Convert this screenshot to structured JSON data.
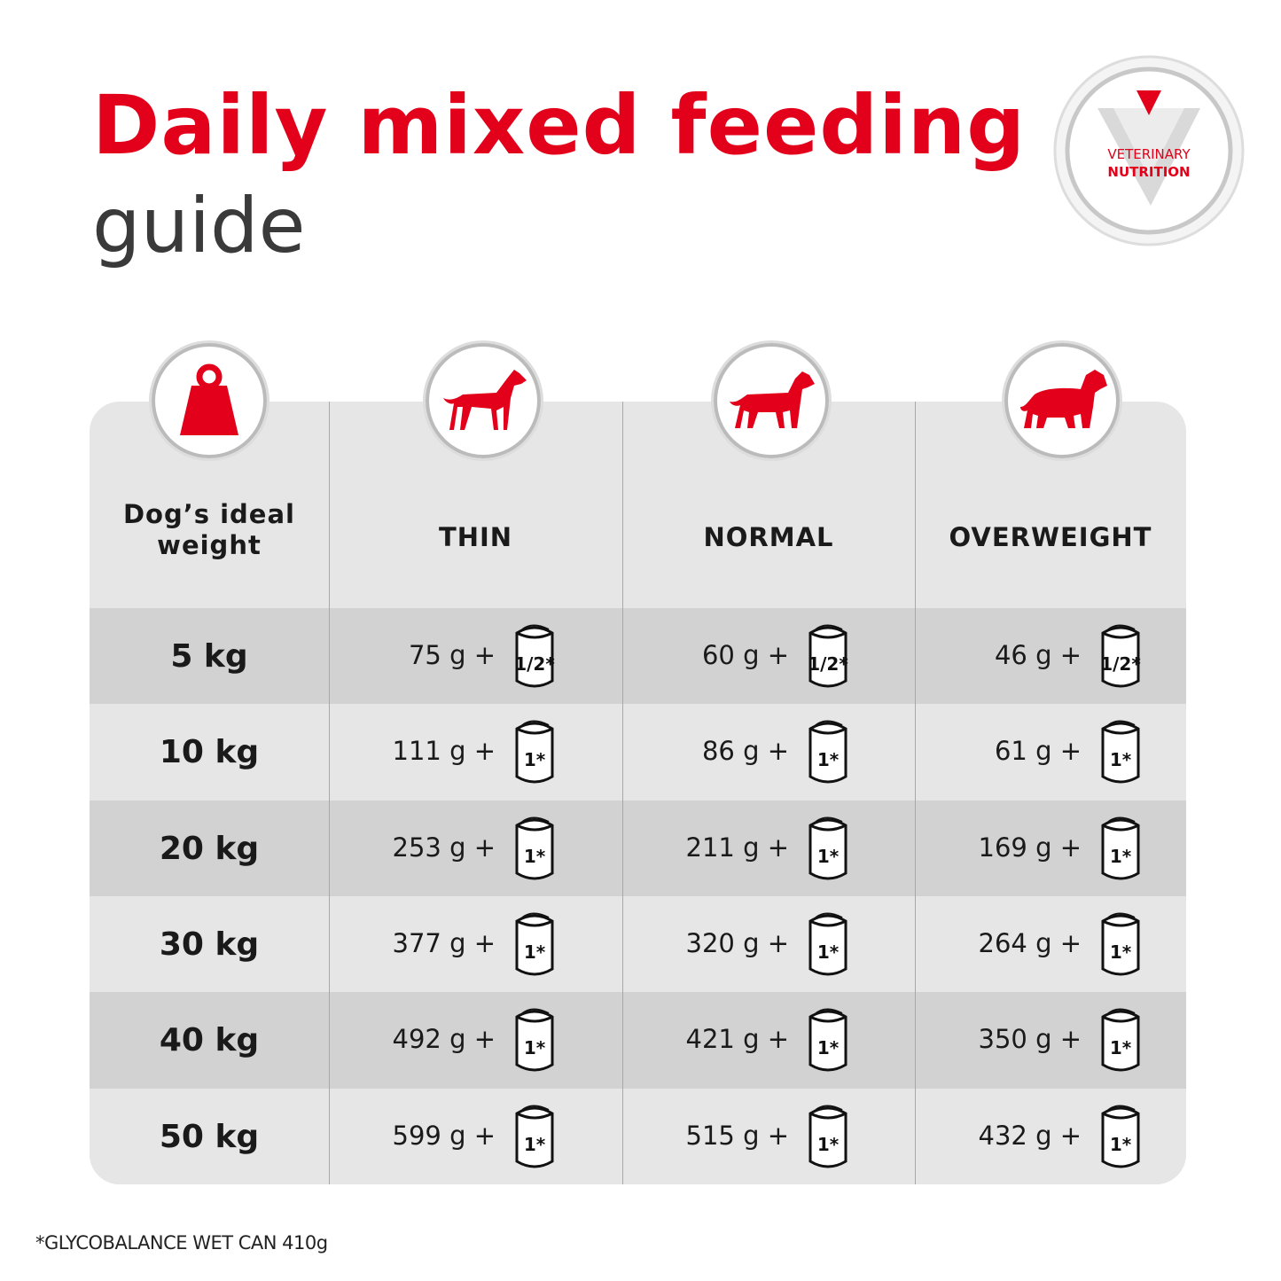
{
  "header": {
    "title": "Daily mixed feeding",
    "subtitle": "guide"
  },
  "badge": {
    "line1": "VETERINARY",
    "line2": "NUTRITION"
  },
  "table": {
    "columns": [
      "Dog’s ideal weight",
      "THIN",
      "NORMAL",
      "OVERWEIGHT"
    ],
    "rows": [
      [
        "5 kg",
        {
          "amount": "75 g +",
          "can": "1/2*"
        },
        {
          "amount": "60 g +",
          "can": "1/2*"
        },
        {
          "amount": "46 g +",
          "can": "1/2*"
        }
      ],
      [
        "10 kg",
        {
          "amount": "111 g +",
          "can": "1*"
        },
        {
          "amount": "86 g +",
          "can": "1*"
        },
        {
          "amount": "61 g +",
          "can": "1*"
        }
      ],
      [
        "20 kg",
        {
          "amount": "253 g +",
          "can": "1*"
        },
        {
          "amount": "211 g +",
          "can": "1*"
        },
        {
          "amount": "169 g +",
          "can": "1*"
        }
      ],
      [
        "30 kg",
        {
          "amount": "377 g +",
          "can": "1*"
        },
        {
          "amount": "320 g +",
          "can": "1*"
        },
        {
          "amount": "264 g +",
          "can": "1*"
        }
      ],
      [
        "40 kg",
        {
          "amount": "492 g +",
          "can": "1*"
        },
        {
          "amount": "421 g +",
          "can": "1*"
        },
        {
          "amount": "350 g +",
          "can": "1*"
        }
      ],
      [
        "50 kg",
        {
          "amount": "599 g +",
          "can": "1*"
        },
        {
          "amount": "515 g +",
          "can": "1*"
        },
        {
          "amount": "432 g +",
          "can": "1*"
        }
      ]
    ]
  },
  "footnote": "*GLYCOBALANCE WET CAN 410g"
}
